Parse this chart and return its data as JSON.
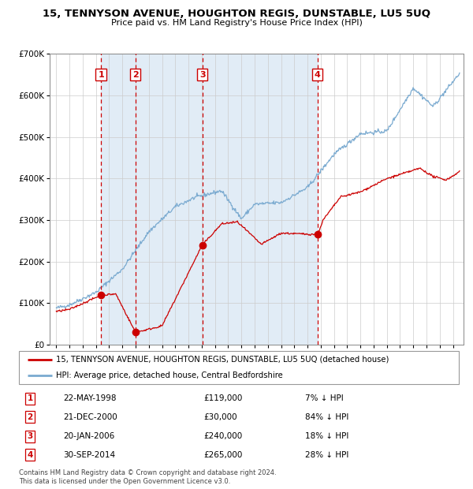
{
  "title": "15, TENNYSON AVENUE, HOUGHTON REGIS, DUNSTABLE, LU5 5UQ",
  "subtitle": "Price paid vs. HM Land Registry's House Price Index (HPI)",
  "transactions": [
    {
      "num": 1,
      "date": "22-MAY-1998",
      "price": 119000,
      "hpi_pct": "7% ↓ HPI",
      "year": 1998.38
    },
    {
      "num": 2,
      "date": "21-DEC-2000",
      "price": 30000,
      "hpi_pct": "84% ↓ HPI",
      "year": 2000.97
    },
    {
      "num": 3,
      "date": "20-JAN-2006",
      "price": 240000,
      "hpi_pct": "18% ↓ HPI",
      "year": 2006.05
    },
    {
      "num": 4,
      "date": "30-SEP-2014",
      "price": 265000,
      "hpi_pct": "28% ↓ HPI",
      "year": 2014.75
    }
  ],
  "legend_label_red": "15, TENNYSON AVENUE, HOUGHTON REGIS, DUNSTABLE, LU5 5UQ (detached house)",
  "legend_label_blue": "HPI: Average price, detached house, Central Bedfordshire",
  "footnote1": "Contains HM Land Registry data © Crown copyright and database right 2024.",
  "footnote2": "This data is licensed under the Open Government Licence v3.0.",
  "red_color": "#cc0000",
  "blue_color": "#7aaad0",
  "bg_shade_color": "#dce9f5",
  "dashed_color": "#cc0000",
  "ylim": [
    0,
    700000
  ],
  "xlim_start": 1994.5,
  "xlim_end": 2025.8,
  "trans_prices": [
    119000,
    30000,
    240000,
    265000
  ]
}
